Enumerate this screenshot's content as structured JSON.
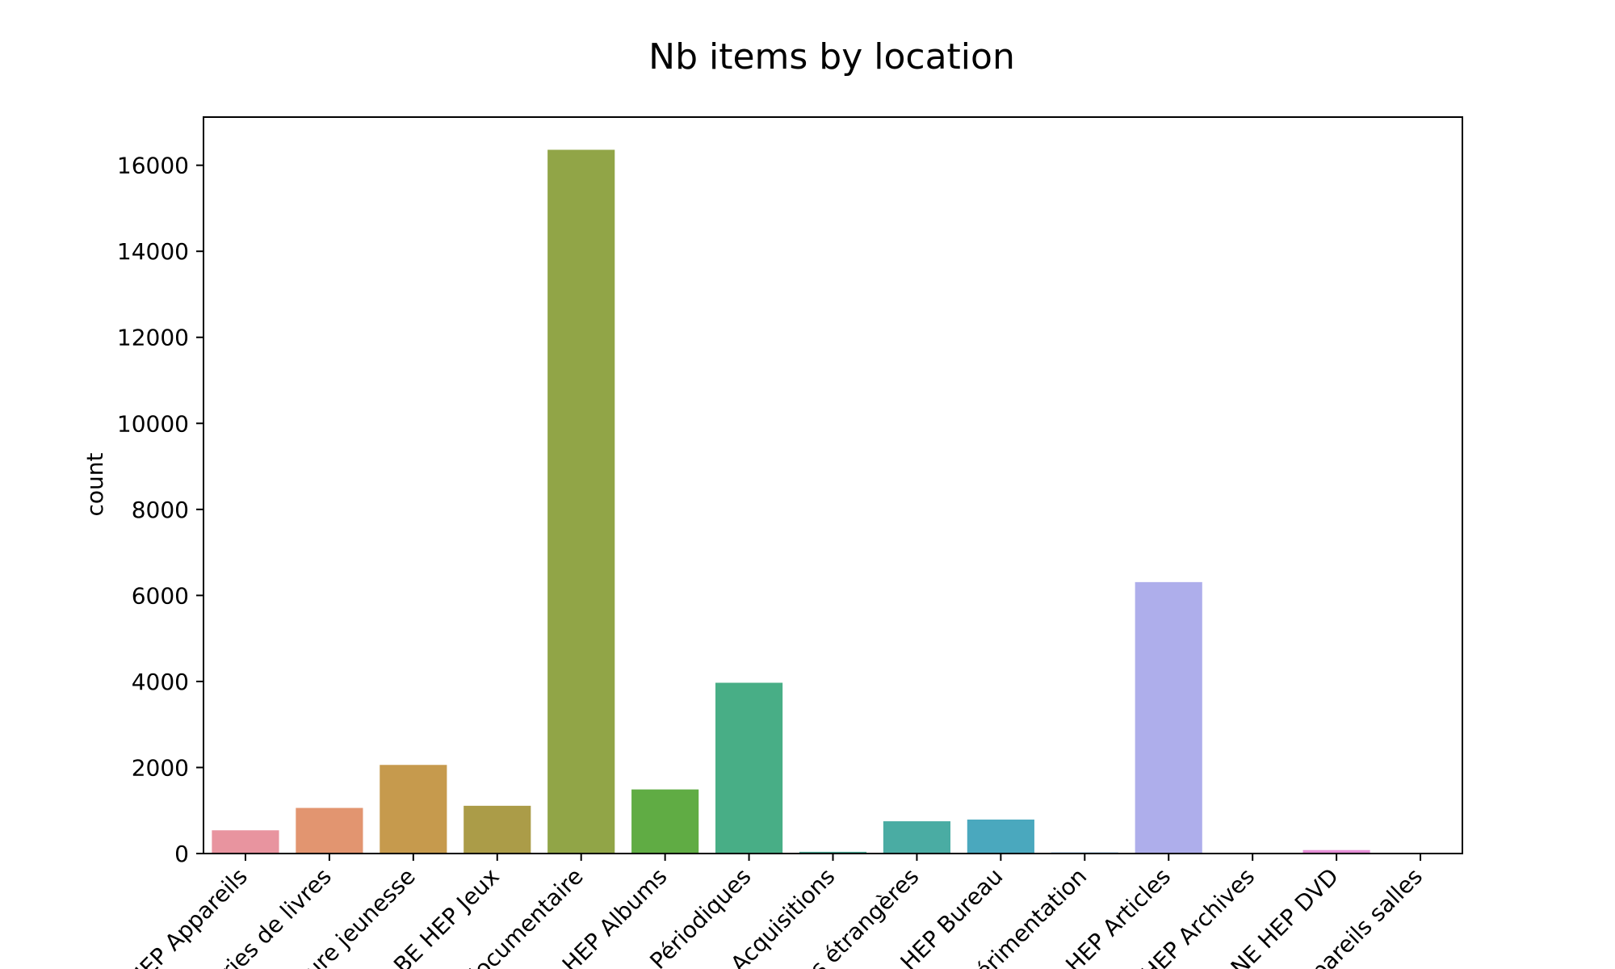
{
  "chart_data": {
    "type": "bar",
    "title": "Nb items by location",
    "xlabel": "",
    "ylabel": "count",
    "ylim": [
      0,
      17120
    ],
    "yticks": [
      0,
      2000,
      4000,
      6000,
      8000,
      10000,
      12000,
      14000,
      16000
    ],
    "grid": false,
    "legend": "none",
    "categories": [
      "HEP Appareils",
      "ries de livres",
      "ure jeunesse",
      "BE HEP Jeux",
      "locumentaire",
      "HEP Albums",
      "Périodiques",
      "Acquisitions",
      "s étrangères",
      "HEP Bureau",
      "érimentation",
      "HEP Articles",
      "HEP Archives",
      "NE HEP DVD",
      "pareils salles"
    ],
    "values": [
      540,
      1060,
      2060,
      1110,
      16360,
      1490,
      3970,
      40,
      750,
      790,
      25,
      6310,
      5,
      80,
      5
    ],
    "colors": [
      "#e8949f",
      "#e29570",
      "#c69a4d",
      "#ab9c48",
      "#91a547",
      "#60ac44",
      "#48ae86",
      "#4aae97",
      "#4aaca3",
      "#4aa8be",
      "#6aa7db",
      "#aeaeeb",
      "#c89be8",
      "#e58fd6",
      "#e88fbf"
    ]
  }
}
